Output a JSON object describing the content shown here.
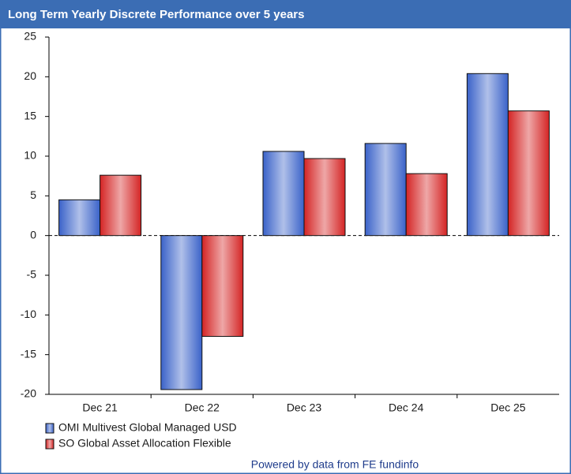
{
  "chart_data": {
    "type": "bar",
    "title": "Long Term Yearly Discrete Performance over 5 years",
    "categories": [
      "Dec 21",
      "Dec 22",
      "Dec 23",
      "Dec 24",
      "Dec 25"
    ],
    "series": [
      {
        "name": "OMI Multivest Global Managed USD",
        "color": "#3a62c9",
        "values": [
          4.5,
          -19.4,
          10.6,
          11.6,
          20.4
        ]
      },
      {
        "name": "SO Global Asset Allocation Flexible",
        "color": "#d42424",
        "values": [
          7.6,
          -12.7,
          9.7,
          7.8,
          15.7
        ]
      }
    ],
    "ylim": [
      -20,
      25
    ],
    "yticks": [
      -20,
      -15,
      -10,
      -5,
      0,
      5,
      10,
      15,
      20,
      25
    ],
    "grid": false,
    "legend": "bottom-left",
    "footer": "Powered by data from FE fundinfo"
  }
}
